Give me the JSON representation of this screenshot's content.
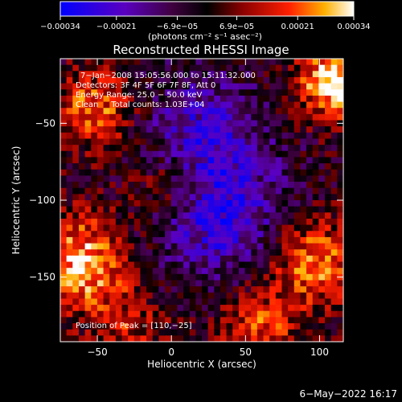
{
  "chart_data": {
    "type": "heatmap",
    "title": "Reconstructed RHESSI Image",
    "xlabel": "Heliocentric X (arcsec)",
    "ylabel": "Heliocentric Y (arcsec)",
    "xlim": [
      -75,
      116
    ],
    "ylim": [
      -192,
      -8
    ],
    "x_ticks": [
      -50,
      0,
      50,
      100
    ],
    "x_tick_labels": [
      "−50",
      "0",
      "50",
      "100"
    ],
    "y_ticks": [
      -50,
      -100,
      -150
    ],
    "y_tick_labels": [
      "−50",
      "−100",
      "−150"
    ],
    "colorbar": {
      "range": [
        -0.00034,
        0.00034
      ],
      "tick_values": [
        -0.00034,
        -0.00021,
        -6.9e-05,
        6.9e-05,
        0.00021,
        0.00034
      ],
      "tick_labels": [
        "−0.00034",
        "−0.00021",
        "−6.9e−05",
        "6.9e−05",
        "0.00021",
        "0.00034"
      ],
      "unit_label": "(photons cm⁻² s⁻¹ asec⁻²)",
      "colormap": [
        "#0000ff",
        "#4b00a0",
        "#3a0040",
        "#000000",
        "#800000",
        "#ff3000",
        "#ffb000",
        "#ffffff"
      ]
    },
    "annotations": [
      "7−Jan−2008 15:05:56.000 to 15:11:32.000",
      "Detectors: 3F 4F 5F 6F 7F 8F, Att 0",
      "Energy Range: 25.0 − 50.0 keV",
      "Clean     Total counts: 1.03E+04"
    ],
    "peak_label": "Position of Peak = [110,−25]",
    "peak": [
      110,
      -25
    ],
    "grid": false
  },
  "footer": {
    "date": "6−May−2022 16:17"
  }
}
